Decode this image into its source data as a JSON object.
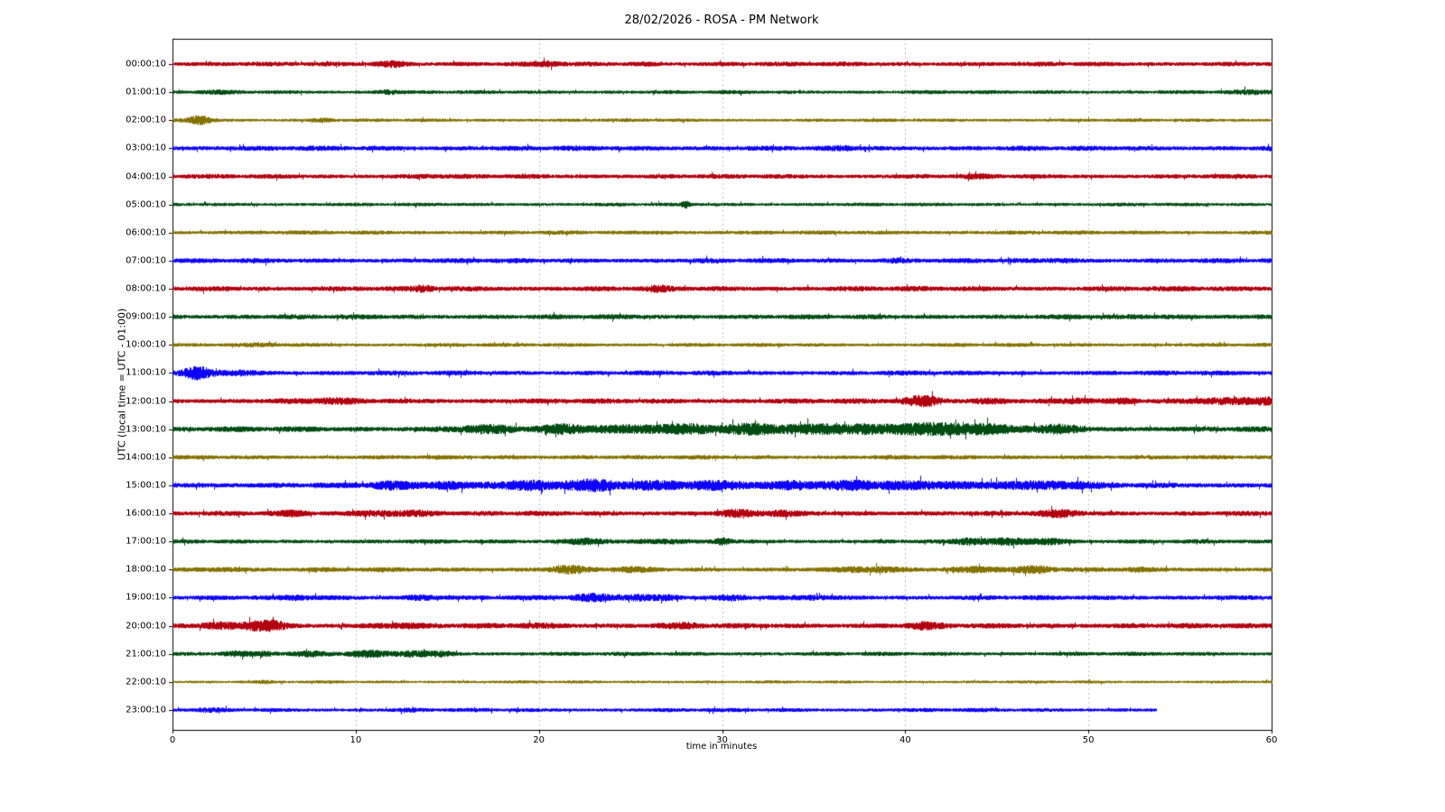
{
  "title": "28/02/2026 - ROSA - PM Network",
  "xlabel": "time in minutes",
  "ylabel": "UTC (local time = UTC - 01:00)",
  "chart_data": {
    "type": "line",
    "subtype": "helicorder-dayplot",
    "x_range": [
      0,
      60
    ],
    "x_ticks": [
      0,
      10,
      20,
      30,
      40,
      50,
      60
    ],
    "grid": "vertical-dotted",
    "grid_color": "#b3b3b3",
    "axis_color": "#000000",
    "colors_cycle": [
      "#B2000F",
      "#004C12",
      "#847200",
      "#0E01FF"
    ],
    "rows": [
      {
        "label": "00:00:10",
        "color": "#B2000F",
        "base": 2.2,
        "end": 60,
        "bursts": [
          {
            "t": 12.0,
            "w": 0.6,
            "a": 1.9
          },
          {
            "t": 20.5,
            "w": 0.5,
            "a": 1.7
          },
          {
            "t": 25.8,
            "w": 0.4,
            "a": 1.4
          }
        ]
      },
      {
        "label": "01:00:10",
        "color": "#004C12",
        "base": 1.8,
        "end": 60,
        "bursts": [
          {
            "t": 11.7,
            "w": 0.4,
            "a": 1.9
          },
          {
            "t": 2.5,
            "w": 0.8,
            "a": 1.3
          },
          {
            "t": 59.0,
            "w": 0.9,
            "a": 1.5
          }
        ]
      },
      {
        "label": "02:00:10",
        "color": "#847200",
        "base": 1.6,
        "end": 60,
        "bursts": [
          {
            "t": 1.5,
            "w": 0.45,
            "a": 3.6
          },
          {
            "t": 8.2,
            "w": 0.4,
            "a": 1.9
          }
        ]
      },
      {
        "label": "03:00:10",
        "color": "#0E01FF",
        "base": 2.4,
        "end": 60,
        "bursts": [
          {
            "t": 36.5,
            "w": 0.5,
            "a": 1.3
          }
        ]
      },
      {
        "label": "04:00:10",
        "color": "#B2000F",
        "base": 2.2,
        "end": 60,
        "bursts": [
          {
            "t": 14.0,
            "w": 0.6,
            "a": 1.3
          },
          {
            "t": 44.0,
            "w": 0.6,
            "a": 1.3
          }
        ]
      },
      {
        "label": "05:00:10",
        "color": "#004C12",
        "base": 1.7,
        "end": 60,
        "bursts": [
          {
            "t": 28.0,
            "w": 0.15,
            "a": 2.4
          }
        ]
      },
      {
        "label": "06:00:10",
        "color": "#847200",
        "base": 1.9,
        "end": 60,
        "bursts": [
          {
            "t": 26.5,
            "w": 0.5,
            "a": 1.3
          }
        ]
      },
      {
        "label": "07:00:10",
        "color": "#0E01FF",
        "base": 2.3,
        "end": 60,
        "bursts": [
          {
            "t": 39.5,
            "w": 0.5,
            "a": 1.5
          },
          {
            "t": 48.5,
            "w": 0.6,
            "a": 1.4
          }
        ]
      },
      {
        "label": "08:00:10",
        "color": "#B2000F",
        "base": 2.5,
        "end": 60,
        "bursts": [
          {
            "t": 13.7,
            "w": 0.4,
            "a": 1.6
          },
          {
            "t": 26.5,
            "w": 0.4,
            "a": 1.5
          }
        ]
      },
      {
        "label": "09:00:10",
        "color": "#004C12",
        "base": 2.3,
        "end": 60,
        "bursts": [
          {
            "t": 55.0,
            "w": 2.0,
            "a": 1.2
          }
        ]
      },
      {
        "label": "10:00:10",
        "color": "#847200",
        "base": 1.8,
        "end": 60,
        "bursts": [
          {
            "t": 5.0,
            "w": 0.8,
            "a": 1.3
          }
        ]
      },
      {
        "label": "11:00:10",
        "color": "#0E01FF",
        "base": 2.3,
        "end": 60,
        "bursts": [
          {
            "t": 1.3,
            "w": 0.55,
            "a": 2.9
          },
          {
            "t": 3.5,
            "w": 0.8,
            "a": 1.7
          }
        ]
      },
      {
        "label": "12:00:10",
        "color": "#B2000F",
        "base": 2.5,
        "end": 60,
        "bursts": [
          {
            "t": 8.5,
            "w": 1.2,
            "a": 1.5
          },
          {
            "t": 41.0,
            "w": 0.7,
            "a": 2.6
          },
          {
            "t": 44.5,
            "w": 0.8,
            "a": 1.6
          },
          {
            "t": 49.5,
            "w": 0.5,
            "a": 1.6
          },
          {
            "t": 52.0,
            "w": 0.4,
            "a": 1.4
          },
          {
            "t": 57.5,
            "w": 1.4,
            "a": 2.0
          },
          {
            "t": 60.0,
            "w": 0.6,
            "a": 2.0
          }
        ]
      },
      {
        "label": "13:00:10",
        "color": "#004C12",
        "base": 2.6,
        "end": 60,
        "bursts": [
          {
            "t": 17.0,
            "w": 1.5,
            "a": 1.8
          },
          {
            "t": 21.5,
            "w": 1.0,
            "a": 2.0
          },
          {
            "t": 25.0,
            "w": 1.5,
            "a": 2.2
          },
          {
            "t": 28.0,
            "w": 1.2,
            "a": 2.2
          },
          {
            "t": 32.0,
            "w": 1.5,
            "a": 2.3
          },
          {
            "t": 37.0,
            "w": 2.0,
            "a": 2.5
          },
          {
            "t": 41.0,
            "w": 1.4,
            "a": 2.8
          },
          {
            "t": 44.0,
            "w": 1.0,
            "a": 2.4
          },
          {
            "t": 48.0,
            "w": 1.2,
            "a": 2.0
          }
        ]
      },
      {
        "label": "14:00:10",
        "color": "#847200",
        "base": 2.0,
        "end": 60,
        "bursts": [
          {
            "t": 22.0,
            "w": 1.0,
            "a": 1.2
          }
        ]
      },
      {
        "label": "15:00:10",
        "color": "#0E01FF",
        "base": 2.6,
        "end": 60,
        "bursts": [
          {
            "t": 12.0,
            "w": 1.0,
            "a": 1.8
          },
          {
            "t": 15.0,
            "w": 1.0,
            "a": 2.0
          },
          {
            "t": 19.0,
            "w": 1.5,
            "a": 2.2
          },
          {
            "t": 23.0,
            "w": 1.5,
            "a": 2.2
          },
          {
            "t": 27.0,
            "w": 1.5,
            "a": 2.0
          },
          {
            "t": 30.0,
            "w": 1.0,
            "a": 2.4
          },
          {
            "t": 34.0,
            "w": 1.5,
            "a": 2.0
          },
          {
            "t": 38.0,
            "w": 1.5,
            "a": 2.0
          },
          {
            "t": 42.0,
            "w": 1.5,
            "a": 2.0
          },
          {
            "t": 46.0,
            "w": 1.5,
            "a": 2.0
          },
          {
            "t": 49.0,
            "w": 1.0,
            "a": 1.8
          }
        ]
      },
      {
        "label": "16:00:10",
        "color": "#B2000F",
        "base": 2.4,
        "end": 60,
        "bursts": [
          {
            "t": 6.5,
            "w": 0.5,
            "a": 1.5
          },
          {
            "t": 11.5,
            "w": 1.0,
            "a": 1.9
          },
          {
            "t": 13.5,
            "w": 0.6,
            "a": 1.8
          },
          {
            "t": 31.0,
            "w": 0.8,
            "a": 1.8
          },
          {
            "t": 33.0,
            "w": 0.6,
            "a": 1.6
          },
          {
            "t": 48.5,
            "w": 0.8,
            "a": 1.8
          }
        ]
      },
      {
        "label": "17:00:10",
        "color": "#004C12",
        "base": 2.0,
        "end": 60,
        "bursts": [
          {
            "t": 22.5,
            "w": 0.8,
            "a": 2.4
          },
          {
            "t": 26.5,
            "w": 0.8,
            "a": 1.6
          },
          {
            "t": 30.0,
            "w": 0.3,
            "a": 2.7
          },
          {
            "t": 43.5,
            "w": 0.5,
            "a": 2.0
          },
          {
            "t": 45.5,
            "w": 1.2,
            "a": 2.0
          },
          {
            "t": 48.0,
            "w": 0.8,
            "a": 2.2
          }
        ]
      },
      {
        "label": "18:00:10",
        "color": "#847200",
        "base": 2.2,
        "end": 60,
        "bursts": [
          {
            "t": 3.0,
            "w": 0.8,
            "a": 1.5
          },
          {
            "t": 21.5,
            "w": 0.7,
            "a": 2.2
          },
          {
            "t": 25.0,
            "w": 0.8,
            "a": 1.5
          },
          {
            "t": 38.0,
            "w": 1.0,
            "a": 1.8
          },
          {
            "t": 44.0,
            "w": 1.0,
            "a": 2.0
          },
          {
            "t": 47.0,
            "w": 0.8,
            "a": 2.2
          },
          {
            "t": 52.5,
            "w": 0.5,
            "a": 1.4
          }
        ]
      },
      {
        "label": "19:00:10",
        "color": "#0E01FF",
        "base": 2.3,
        "end": 60,
        "bursts": [
          {
            "t": 7.0,
            "w": 0.5,
            "a": 1.5
          },
          {
            "t": 13.5,
            "w": 0.6,
            "a": 1.8
          },
          {
            "t": 23.0,
            "w": 0.8,
            "a": 2.0
          },
          {
            "t": 25.5,
            "w": 0.7,
            "a": 2.0
          },
          {
            "t": 27.0,
            "w": 0.5,
            "a": 1.8
          },
          {
            "t": 30.5,
            "w": 0.5,
            "a": 1.6
          },
          {
            "t": 35.0,
            "w": 0.5,
            "a": 1.5
          }
        ]
      },
      {
        "label": "20:00:10",
        "color": "#B2000F",
        "base": 2.5,
        "end": 60,
        "bursts": [
          {
            "t": 2.5,
            "w": 0.8,
            "a": 1.6
          },
          {
            "t": 4.7,
            "w": 0.5,
            "a": 2.7
          },
          {
            "t": 5.6,
            "w": 0.4,
            "a": 2.2
          },
          {
            "t": 12.0,
            "w": 1.0,
            "a": 1.5
          },
          {
            "t": 20.0,
            "w": 1.0,
            "a": 1.4
          },
          {
            "t": 28.0,
            "w": 1.0,
            "a": 1.4
          },
          {
            "t": 41.0,
            "w": 0.6,
            "a": 1.8
          }
        ]
      },
      {
        "label": "21:00:10",
        "color": "#004C12",
        "base": 1.9,
        "end": 60,
        "bursts": [
          {
            "t": 3.5,
            "w": 0.6,
            "a": 2.2
          },
          {
            "t": 5.0,
            "w": 0.5,
            "a": 2.0
          },
          {
            "t": 7.5,
            "w": 0.8,
            "a": 1.8
          },
          {
            "t": 10.5,
            "w": 0.8,
            "a": 2.0
          },
          {
            "t": 13.0,
            "w": 0.7,
            "a": 2.2
          },
          {
            "t": 14.8,
            "w": 0.5,
            "a": 1.8
          }
        ]
      },
      {
        "label": "22:00:10",
        "color": "#847200",
        "base": 1.4,
        "end": 60,
        "bursts": [
          {
            "t": 5.0,
            "w": 0.3,
            "a": 1.5
          }
        ]
      },
      {
        "label": "23:00:10",
        "color": "#0E01FF",
        "base": 1.9,
        "end": 53.7,
        "bursts": [
          {
            "t": 2.0,
            "w": 0.5,
            "a": 1.4
          },
          {
            "t": 13.0,
            "w": 0.5,
            "a": 1.3
          }
        ]
      }
    ]
  }
}
